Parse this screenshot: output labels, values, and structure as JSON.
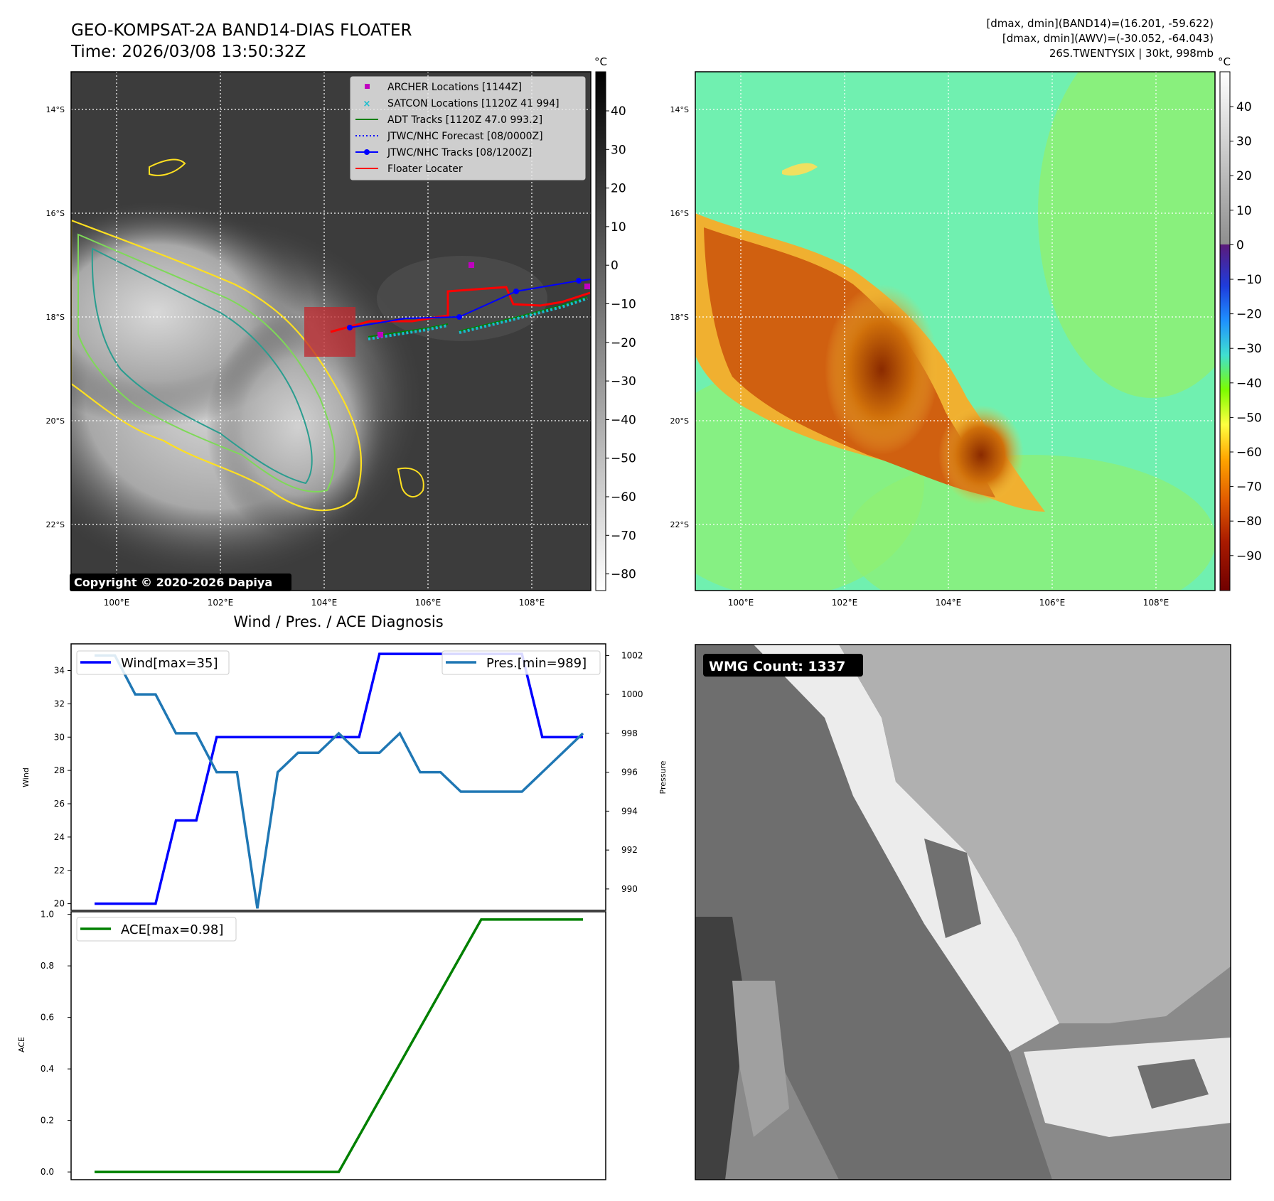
{
  "header": {
    "title": "GEO-KOMPSAT-2A BAND14-DIAS FLOATER",
    "time": "Time: 2026/03/08 13:50:32Z",
    "stats": [
      "[dmax, dmin](BAND14)=(16.201, -59.622)",
      "[dmax, dmin](AWV)=(-30.052, -64.043)",
      "26S.TWENTYSIX | 30kt, 998mb"
    ]
  },
  "maps": {
    "lat_labels": [
      "14°S",
      "16°S",
      "18°S",
      "20°S",
      "22°S"
    ],
    "lon_labels": [
      "100°E",
      "102°E",
      "104°E",
      "106°E",
      "108°E"
    ],
    "copyright": "Copyright © 2020-2026 Dapiya",
    "colorbar_unit": "°C",
    "ir_colorbar_ticks": [
      "40",
      "30",
      "20",
      "10",
      "0",
      "−10",
      "−20",
      "−30",
      "−40",
      "−50",
      "−60",
      "−70",
      "−80"
    ],
    "wv_colorbar_ticks": [
      "40",
      "30",
      "20",
      "10",
      "0",
      "−10",
      "−20",
      "−30",
      "−40",
      "−50",
      "−60",
      "−70",
      "−80",
      "−90"
    ],
    "legend": [
      {
        "label": "ARCHER Locations [1144Z]",
        "color": "#c000c0",
        "marker": "square"
      },
      {
        "label": "SATCON Locations [1120Z 41 994]",
        "color": "#17becf",
        "marker": "x"
      },
      {
        "label": "ADT Tracks [1120Z 47.0 993.2]",
        "color": "#008000",
        "marker": "line"
      },
      {
        "label": "JTWC/NHC Forecast [08/0000Z]",
        "color": "#0000ff",
        "marker": "dotted"
      },
      {
        "label": "JTWC/NHC Tracks [08/1200Z]",
        "color": "#0000ff",
        "marker": "line-dot"
      },
      {
        "label": "Floater Locater",
        "color": "#ff0000",
        "marker": "line"
      }
    ]
  },
  "wmg": {
    "badge": "WMG Count: 1337"
  },
  "chart_data": [
    {
      "type": "line",
      "title": "Wind / Pres. / ACE Diagnosis",
      "x": [
        0,
        1,
        2,
        3,
        4,
        5,
        6,
        7,
        8,
        9,
        10,
        11,
        12,
        13,
        14,
        15,
        16,
        17,
        18,
        19,
        20,
        21,
        22,
        23,
        24
      ],
      "series": [
        {
          "name": "Wind[max=35]",
          "axis": "left",
          "color": "#0000ff",
          "values": [
            20,
            20,
            20,
            20,
            25,
            25,
            30,
            30,
            30,
            30,
            30,
            30,
            30,
            30,
            35,
            35,
            35,
            35,
            35,
            35,
            35,
            35,
            30,
            30,
            30
          ]
        },
        {
          "name": "Pres.[min=989]",
          "axis": "right",
          "color": "#1f77b4",
          "values": [
            1002,
            1002,
            1000,
            1000,
            998,
            998,
            996,
            996,
            989,
            996,
            997,
            997,
            998,
            997,
            997,
            998,
            996,
            996,
            995,
            995,
            995,
            995,
            996,
            997,
            998
          ]
        }
      ],
      "ylabel": "Wind",
      "ylabel_right": "Pressure",
      "ylim": [
        19.6,
        35.6
      ],
      "ylim_right": [
        988.9,
        1002.6
      ],
      "yticks": [
        20,
        22,
        24,
        26,
        28,
        30,
        32,
        34
      ],
      "yticks_right": [
        990,
        992,
        994,
        996,
        998,
        1000,
        1002
      ]
    },
    {
      "type": "line",
      "x": [
        0,
        1,
        2,
        3,
        4,
        5,
        6,
        7,
        8,
        9,
        10,
        11,
        12,
        13,
        14,
        15,
        16,
        17,
        18,
        19,
        20,
        21,
        22,
        23,
        24
      ],
      "series": [
        {
          "name": "ACE[max=0.98]",
          "color": "#008000",
          "values": [
            0,
            0,
            0,
            0,
            0,
            0,
            0,
            0,
            0,
            0,
            0,
            0,
            0,
            0.14,
            0.28,
            0.42,
            0.56,
            0.7,
            0.84,
            0.98,
            0.98,
            0.98,
            0.98,
            0.98,
            0.98
          ]
        }
      ],
      "ylabel": "ACE",
      "ylim": [
        -0.03,
        1.01
      ],
      "yticks": [
        0.0,
        0.2,
        0.4,
        0.6,
        0.8,
        1.0
      ],
      "ytick_labels": [
        "0.0",
        "0.2",
        "0.4",
        "0.6",
        "0.8",
        "1.0"
      ]
    }
  ]
}
